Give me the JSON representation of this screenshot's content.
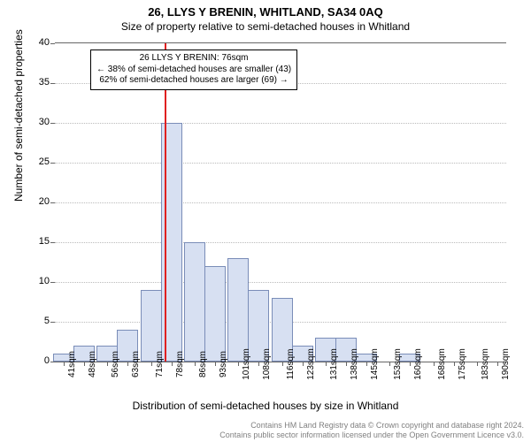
{
  "title": "26, LLYS Y BRENIN, WHITLAND, SA34 0AQ",
  "subtitle": "Size of property relative to semi-detached houses in Whitland",
  "yaxis_label": "Number of semi-detached properties",
  "xaxis_label": "Distribution of semi-detached houses by size in Whitland",
  "footer_line1": "Contains HM Land Registry data © Crown copyright and database right 2024.",
  "footer_line2": "Contains public sector information licensed under the Open Government Licence v3.0.",
  "annotation": {
    "line1": "26 LLYS Y BRENIN: 76sqm",
    "line2": "← 38% of semi-detached houses are smaller (43)",
    "line3": "62% of semi-detached houses are larger (69) →"
  },
  "chart": {
    "type": "histogram",
    "background_color": "#ffffff",
    "grid_color": "#bbbbbb",
    "axis_color": "#666666",
    "bar_fill": "#d7e0f2",
    "bar_stroke": "#7a8db8",
    "marker_color": "#e02020",
    "marker_x": 76,
    "ylim": [
      0,
      40
    ],
    "ytick_step": 5,
    "xlim": [
      38,
      193
    ],
    "xticks": [
      41,
      48,
      56,
      63,
      71,
      78,
      86,
      93,
      101,
      108,
      116,
      123,
      131,
      138,
      145,
      153,
      160,
      168,
      175,
      183,
      190
    ],
    "xtick_suffix": "sqm",
    "bar_width_units": 7.3,
    "bars": [
      {
        "x": 41,
        "y": 1
      },
      {
        "x": 48,
        "y": 2
      },
      {
        "x": 56,
        "y": 2
      },
      {
        "x": 63,
        "y": 4
      },
      {
        "x": 71,
        "y": 9
      },
      {
        "x": 78,
        "y": 30
      },
      {
        "x": 86,
        "y": 15
      },
      {
        "x": 93,
        "y": 12
      },
      {
        "x": 101,
        "y": 13
      },
      {
        "x": 108,
        "y": 9
      },
      {
        "x": 116,
        "y": 8
      },
      {
        "x": 123,
        "y": 2
      },
      {
        "x": 131,
        "y": 3
      },
      {
        "x": 138,
        "y": 3
      },
      {
        "x": 145,
        "y": 1
      },
      {
        "x": 153,
        "y": 0
      },
      {
        "x": 160,
        "y": 1
      },
      {
        "x": 168,
        "y": 0
      },
      {
        "x": 175,
        "y": 0
      },
      {
        "x": 183,
        "y": 0
      },
      {
        "x": 190,
        "y": 0
      }
    ]
  }
}
